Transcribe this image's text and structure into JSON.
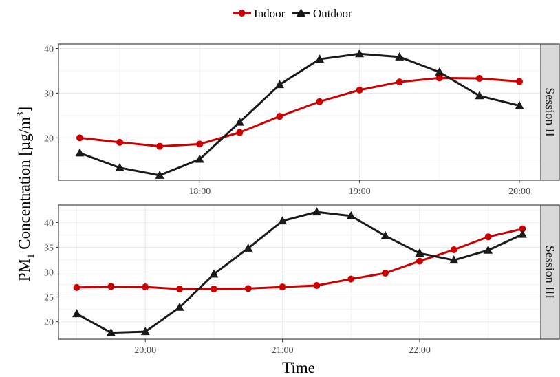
{
  "chart_data": {
    "type": "line",
    "xlabel": "Time",
    "ylabel_main": "PM",
    "ylabel_sub": "1",
    "ylabel_rest": " Concentration [µg/m",
    "ylabel_sup": "3",
    "ylabel_close": "]",
    "legend_position": "top",
    "grid": true,
    "series_styles": [
      {
        "name": "Indoor",
        "color": "#cc0000",
        "marker": "circle"
      },
      {
        "name": "Outdoor",
        "color": "#1a1a1a",
        "marker": "triangle"
      }
    ],
    "panels": [
      {
        "strip": "Session II",
        "x": [
          "17:15",
          "17:30",
          "17:45",
          "18:00",
          "18:15",
          "18:30",
          "18:45",
          "19:00",
          "19:15",
          "19:30",
          "19:45",
          "20:00"
        ],
        "x_ticks": [
          "18:00",
          "19:00",
          "20:00"
        ],
        "xlim": [
          "17:07",
          "20:08"
        ],
        "ylim": [
          10.5,
          41
        ],
        "y_ticks": [
          20,
          30,
          40
        ],
        "series": [
          {
            "name": "Indoor",
            "values": [
              20.0,
              19.0,
              18.1,
              18.6,
              21.2,
              24.8,
              28.1,
              30.7,
              32.5,
              33.4,
              33.3,
              32.6
            ]
          },
          {
            "name": "Outdoor",
            "values": [
              16.6,
              13.3,
              11.6,
              15.2,
              23.5,
              31.9,
              37.6,
              38.8,
              38.1,
              34.7,
              29.4,
              27.2
            ]
          }
        ]
      },
      {
        "strip": "Session III",
        "x": [
          "19:30",
          "19:45",
          "20:00",
          "20:15",
          "20:30",
          "20:45",
          "21:00",
          "21:15",
          "21:30",
          "21:45",
          "22:00",
          "22:15",
          "22:30",
          "22:45"
        ],
        "x_ticks": [
          "20:00",
          "21:00",
          "22:00"
        ],
        "xlim": [
          "19:22",
          "22:53"
        ],
        "ylim": [
          16.5,
          43.5
        ],
        "y_ticks": [
          20,
          25,
          30,
          35,
          40
        ],
        "series": [
          {
            "name": "Indoor",
            "values": [
              26.9,
              27.1,
              27.0,
              26.6,
              26.6,
              26.7,
              27.0,
              27.3,
              28.6,
              29.8,
              32.2,
              34.5,
              37.1,
              38.7
            ]
          },
          {
            "name": "Outdoor",
            "values": [
              21.6,
              17.8,
              18.0,
              22.9,
              29.6,
              34.8,
              40.3,
              42.1,
              41.3,
              37.3,
              33.8,
              32.4,
              34.4,
              37.6
            ]
          }
        ]
      }
    ]
  }
}
